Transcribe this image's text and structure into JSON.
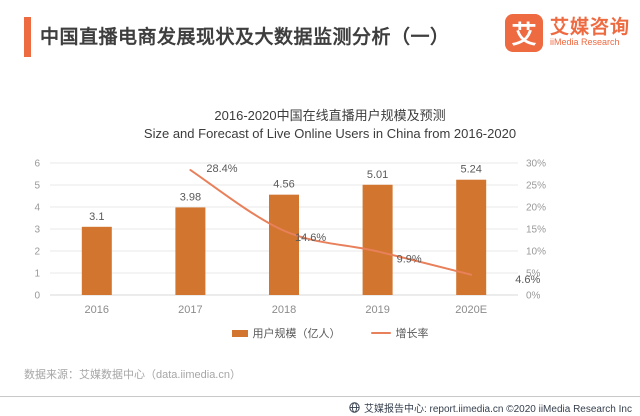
{
  "header": {
    "title": "中国直播电商发展现状及大数据监测分析（一）"
  },
  "logo": {
    "mark": "艾",
    "name_cn": "艾媒咨询",
    "name_en": "iiMedia Research"
  },
  "chart_data": {
    "type": "bar+line",
    "title": "2016-2020中国在线直播用户规模及预测",
    "subtitle": "Size and Forecast of Live Online Users in China from 2016-2020",
    "categories": [
      "2016",
      "2017",
      "2018",
      "2019",
      "2020E"
    ],
    "series": [
      {
        "name": "用户规模（亿人）",
        "type": "bar",
        "axis": "left",
        "color": "#d2752f",
        "values": [
          3.1,
          3.98,
          4.56,
          5.01,
          5.24
        ],
        "labels": [
          "3.1",
          "3.98",
          "4.56",
          "5.01",
          "5.24"
        ]
      },
      {
        "name": "增长率",
        "type": "line",
        "axis": "right",
        "color": "#e8805b",
        "values": [
          null,
          28.4,
          14.6,
          9.9,
          4.6
        ],
        "labels": [
          null,
          "28.4%",
          "14.6%",
          "9.9%",
          "4.6%"
        ]
      }
    ],
    "left_axis": {
      "min": 0,
      "max": 6,
      "step": 1,
      "ticks": [
        "0",
        "1",
        "2",
        "3",
        "4",
        "5",
        "6"
      ]
    },
    "right_axis": {
      "min": 0,
      "max": 30,
      "step": 5,
      "ticks": [
        "0%",
        "5%",
        "10%",
        "15%",
        "20%",
        "25%",
        "30%"
      ]
    },
    "legend_position": "bottom",
    "grid": true
  },
  "source": {
    "text": "数据来源：艾媒数据中心（data.iimedia.cn）"
  },
  "footer": {
    "text": "艾媒报告中心: report.iimedia.cn  ©2020  iiMedia Research Inc"
  },
  "colors": {
    "accent": "#ee6a41",
    "bar": "#d2752f",
    "line": "#e8805b",
    "grid": "#e9e9e9"
  }
}
